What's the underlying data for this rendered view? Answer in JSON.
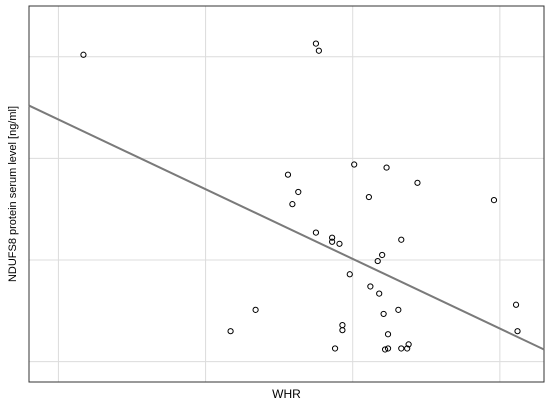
{
  "chart_data": {
    "type": "scatter",
    "title": "",
    "xlabel": "WHR",
    "ylabel": "NDUFS8 protein serum level [ng/ml]",
    "grid": true,
    "xlim": [
      0.7,
      1.05
    ],
    "ylim": [
      -0.2,
      3.5
    ],
    "x_gridlines": [
      0.72,
      0.82,
      0.92,
      1.02
    ],
    "y_gridlines": [
      0,
      1,
      2,
      3
    ],
    "tick_labels_visible": false,
    "points": [
      {
        "x": 0.737,
        "y": 3.02
      },
      {
        "x": 0.895,
        "y": 3.13
      },
      {
        "x": 0.897,
        "y": 3.06
      },
      {
        "x": 0.943,
        "y": 1.91
      },
      {
        "x": 0.921,
        "y": 1.94
      },
      {
        "x": 0.964,
        "y": 1.76
      },
      {
        "x": 0.876,
        "y": 1.84
      },
      {
        "x": 0.883,
        "y": 1.67
      },
      {
        "x": 0.879,
        "y": 1.55
      },
      {
        "x": 0.931,
        "y": 1.62
      },
      {
        "x": 1.016,
        "y": 1.59
      },
      {
        "x": 0.895,
        "y": 1.27
      },
      {
        "x": 0.906,
        "y": 1.22
      },
      {
        "x": 0.906,
        "y": 1.18
      },
      {
        "x": 0.911,
        "y": 1.16
      },
      {
        "x": 0.953,
        "y": 1.2
      },
      {
        "x": 0.94,
        "y": 1.05
      },
      {
        "x": 0.937,
        "y": 0.99
      },
      {
        "x": 0.918,
        "y": 0.86
      },
      {
        "x": 0.932,
        "y": 0.74
      },
      {
        "x": 0.938,
        "y": 0.67
      },
      {
        "x": 0.941,
        "y": 0.47
      },
      {
        "x": 0.854,
        "y": 0.51
      },
      {
        "x": 0.837,
        "y": 0.3
      },
      {
        "x": 0.913,
        "y": 0.36
      },
      {
        "x": 0.913,
        "y": 0.31
      },
      {
        "x": 0.951,
        "y": 0.51
      },
      {
        "x": 0.944,
        "y": 0.27
      },
      {
        "x": 0.908,
        "y": 0.13
      },
      {
        "x": 0.942,
        "y": 0.12
      },
      {
        "x": 0.944,
        "y": 0.13
      },
      {
        "x": 0.953,
        "y": 0.13
      },
      {
        "x": 0.957,
        "y": 0.13
      },
      {
        "x": 0.958,
        "y": 0.17
      },
      {
        "x": 1.031,
        "y": 0.56
      },
      {
        "x": 1.032,
        "y": 0.3
      }
    ],
    "trendline": {
      "x": [
        0.7,
        1.05
      ],
      "y": [
        2.52,
        0.12
      ]
    }
  }
}
